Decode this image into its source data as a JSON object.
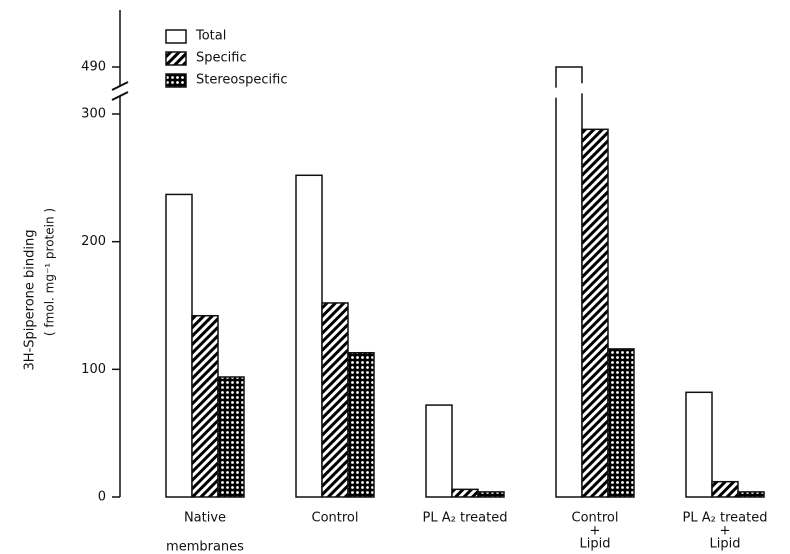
{
  "chart_data": {
    "type": "bar",
    "y_label": [
      "3H-Spiperone    binding",
      "( fmol. mg⁻¹ protein )"
    ],
    "categories": [
      [
        "Native",
        "membranes"
      ],
      [
        "Control"
      ],
      [
        "PL A₂ treated"
      ],
      [
        "Control",
        "+",
        "Lipid"
      ],
      [
        "PL A₂ treated",
        "+",
        "Lipid"
      ]
    ],
    "series": [
      {
        "name": "Total",
        "color": "#ffffff",
        "pattern": "solid",
        "values": [
          237,
          252,
          72,
          490,
          82
        ]
      },
      {
        "name": "Specific",
        "color": "#111111",
        "pattern": "hatch",
        "values": [
          142,
          152,
          6,
          288,
          12
        ]
      },
      {
        "name": "Stereospecific",
        "color": "#111111",
        "pattern": "dots",
        "values": [
          94,
          113,
          4,
          116,
          4
        ]
      }
    ],
    "ylim": [
      0,
      490
    ],
    "yticks": [
      0,
      100,
      200,
      300,
      490
    ],
    "axis_break": 300
  }
}
